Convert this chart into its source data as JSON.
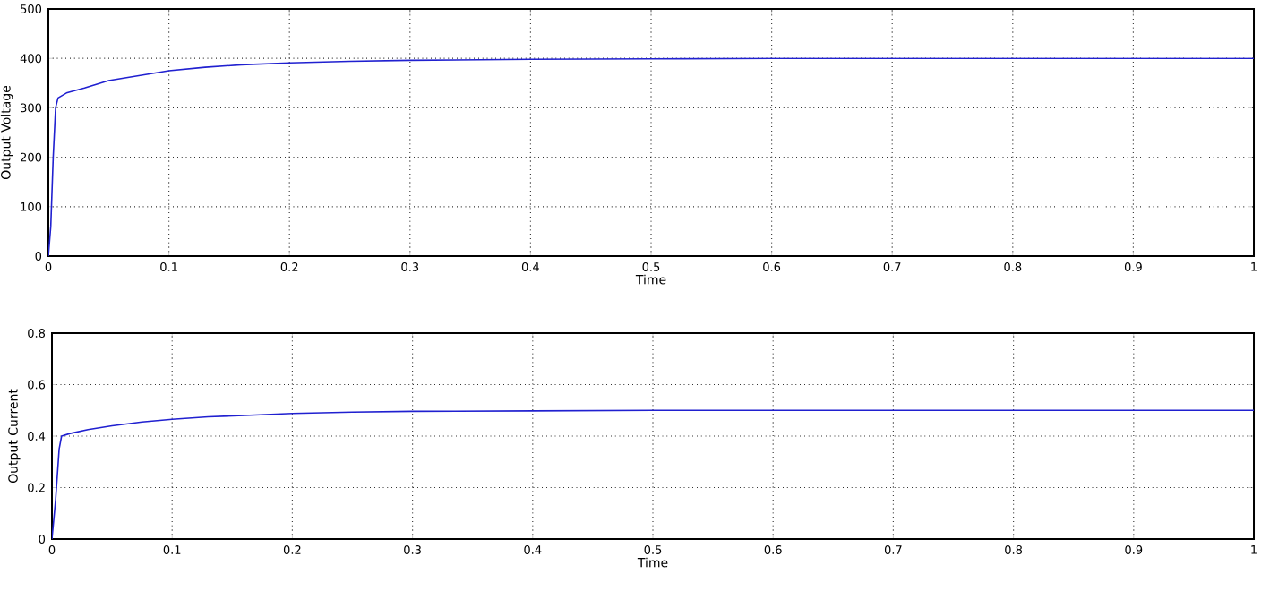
{
  "chart_data": [
    {
      "type": "line",
      "xlabel": "Time",
      "ylabel": "Output Voltage",
      "xlim": [
        0,
        1
      ],
      "ylim": [
        0,
        500
      ],
      "xticks": [
        0,
        0.1,
        0.2,
        0.3,
        0.4,
        0.5,
        0.6,
        0.7,
        0.8,
        0.9,
        1
      ],
      "yticks": [
        0,
        100,
        200,
        300,
        400,
        500
      ],
      "grid": true,
      "x": [
        0,
        0.002,
        0.004,
        0.006,
        0.008,
        0.015,
        0.03,
        0.05,
        0.075,
        0.1,
        0.13,
        0.16,
        0.2,
        0.25,
        0.3,
        0.4,
        0.5,
        0.6,
        0.8,
        1.0
      ],
      "series": [
        {
          "color": "#2020d0",
          "values": [
            0,
            60,
            200,
            300,
            320,
            330,
            340,
            355,
            365,
            375,
            382,
            387,
            391,
            394,
            396,
            398,
            399,
            400,
            400,
            400
          ]
        }
      ]
    },
    {
      "type": "line",
      "xlabel": "Time",
      "ylabel": "Output Current",
      "xlim": [
        0,
        1
      ],
      "ylim": [
        0,
        0.8
      ],
      "xticks": [
        0,
        0.1,
        0.2,
        0.3,
        0.4,
        0.5,
        0.6,
        0.7,
        0.8,
        0.9,
        1
      ],
      "yticks": [
        0,
        0.2,
        0.4,
        0.6,
        0.8
      ],
      "grid": true,
      "x": [
        0,
        0.003,
        0.006,
        0.008,
        0.015,
        0.03,
        0.05,
        0.075,
        0.1,
        0.13,
        0.16,
        0.2,
        0.25,
        0.3,
        0.4,
        0.5,
        1.0
      ],
      "series": [
        {
          "color": "#2020d0",
          "values": [
            0,
            0.15,
            0.35,
            0.4,
            0.41,
            0.425,
            0.44,
            0.455,
            0.465,
            0.475,
            0.48,
            0.488,
            0.493,
            0.496,
            0.498,
            0.5,
            0.5
          ]
        }
      ]
    }
  ]
}
